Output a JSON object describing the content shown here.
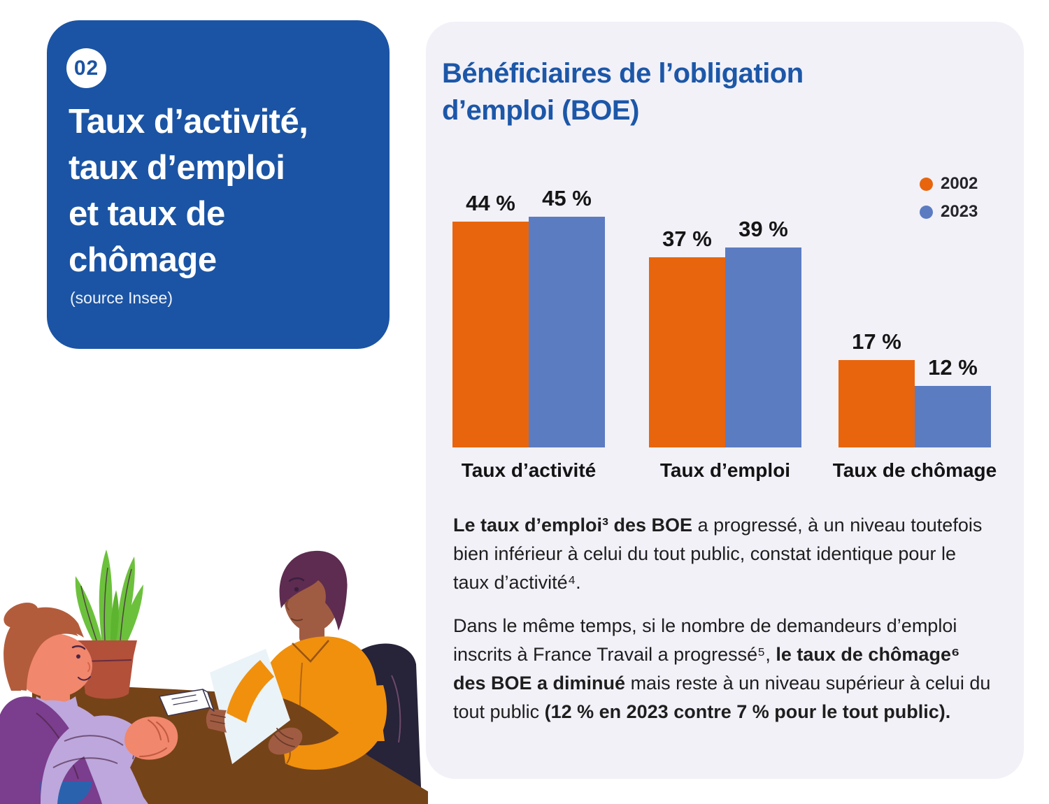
{
  "page": {
    "background": "#ffffff"
  },
  "left_card": {
    "bg_color": "#1b54a4",
    "badge": "02",
    "title_lines": [
      "Taux d’activité,",
      "taux d’emploi",
      "et taux de",
      "chômage"
    ],
    "source": "(source Insee)"
  },
  "right_card": {
    "bg_color": "#f2f1f8",
    "title_color": "#1c57a8",
    "title_lines": [
      "Bénéficiaires de l’obligation",
      "d’emploi (BOE)"
    ]
  },
  "chart_data": {
    "type": "bar",
    "categories": [
      "Taux d’activité",
      "Taux d’emploi",
      "Taux de chômage"
    ],
    "series": [
      {
        "name": "2002",
        "color": "#e8650d",
        "values": [
          44,
          37,
          17
        ]
      },
      {
        "name": "2023",
        "color": "#5b7cc1",
        "values": [
          45,
          39,
          12
        ]
      }
    ],
    "value_suffix": "%",
    "value_labels": true,
    "ylim": [
      0,
      50
    ],
    "grid": false,
    "legend_position": "top-right"
  },
  "paragraphs": [
    [
      {
        "t": "Le taux d’emploi³ des BOE",
        "b": true
      },
      {
        "t": " a progressé, à un niveau toutefois bien inférieur à celui du tout public, constat identique pour le taux d’activité⁴.",
        "b": false
      }
    ],
    [
      {
        "t": "Dans le même temps, si le nombre de demandeurs d’emploi inscrits à France Travail a progressé⁵, ",
        "b": false
      },
      {
        "t": "le taux de chômage⁶ des BOE a diminué",
        "b": true
      },
      {
        "t": " mais reste à un niveau supérieur à celui du tout public ",
        "b": false
      },
      {
        "t": "(12 % en 2023 contre 7 % pour le tout public).",
        "b": true
      }
    ]
  ],
  "illustration": {
    "description": "Job interview scene: woman with hair bun wearing a purple vest sits at a brown desk facing a man in an orange shirt who reads a document; potted green plant and a name card on the desk",
    "colors": {
      "desk": "#754318",
      "plant_leaf": "#6cc13c",
      "plant_pot": "#b2503a",
      "woman_skin": "#f1876c",
      "woman_hair": "#b35c3c",
      "woman_shirt": "#bda7dc",
      "woman_vest": "#7b3d8d",
      "jeans": "#2b62ae",
      "man_skin": "#a05c42",
      "man_hair": "#5e2c50",
      "man_shirt": "#f0900d",
      "chair": "#272339",
      "paper": "#eaf3f8"
    }
  }
}
